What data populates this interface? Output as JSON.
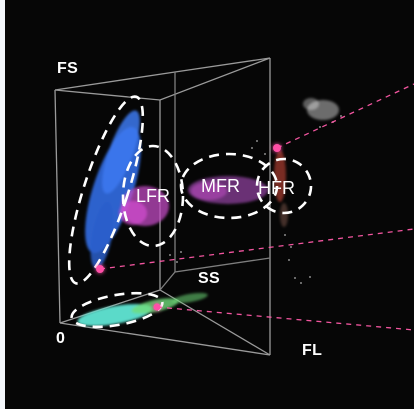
{
  "figure": {
    "axes": {
      "fs": "FS",
      "ss": "SS",
      "fl": "FL",
      "origin": "0"
    },
    "regions": {
      "lfr": "LFR",
      "mfr": "MFR",
      "hfr": "HFR"
    },
    "colors": {
      "background": "#060606",
      "wireframe": "#9a9a9a",
      "dashed_outline": "#ffffff",
      "guide_lines": "#ff5aa8",
      "cluster_blue": "#2f67d8",
      "cluster_magenta": "#c04ac2",
      "cluster_cyan": "#5fe6d4",
      "cluster_green": "#6fdc7a",
      "cluster_white": "#e6e6e6",
      "marker_pink": "#ff4fa7",
      "hfr_red": "#d84b3c"
    }
  }
}
